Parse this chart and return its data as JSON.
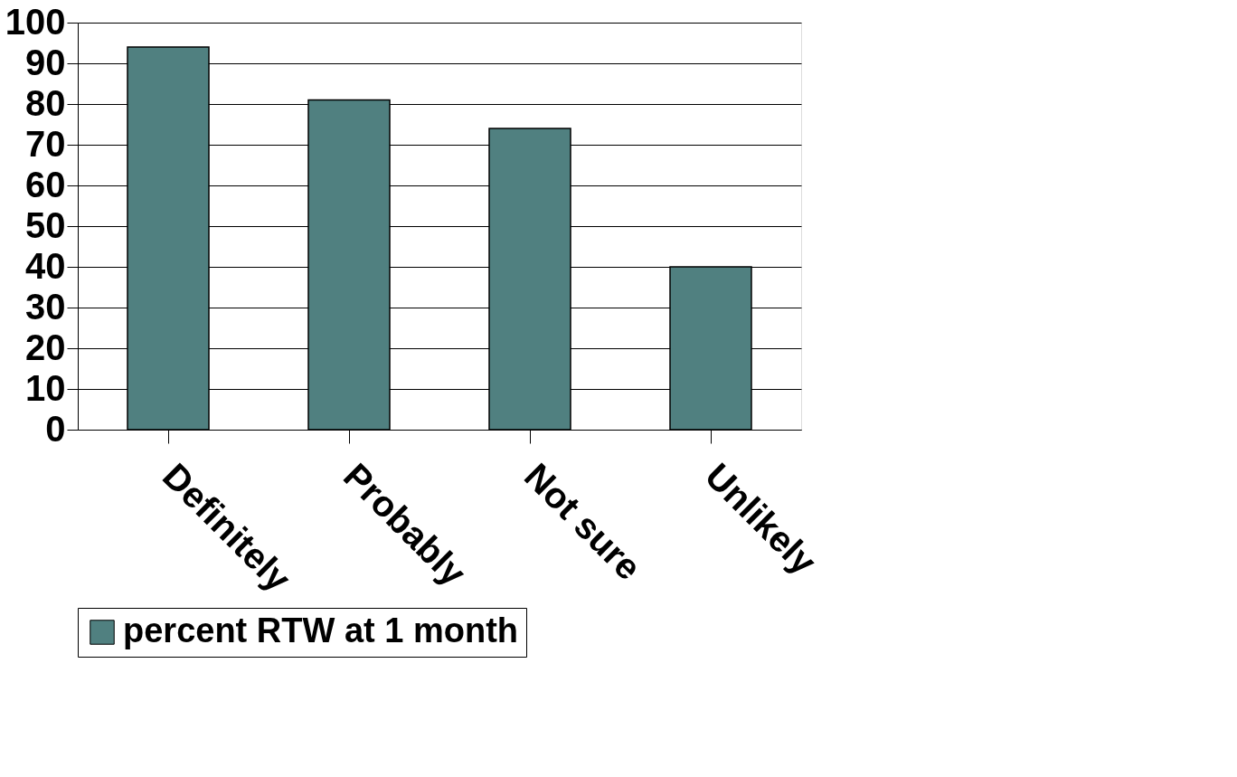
{
  "chart_data": {
    "type": "bar",
    "categories": [
      "Definitely",
      "Probably",
      "Not sure",
      "Unlikely"
    ],
    "series": [
      {
        "name": "percent RTW at 1 month",
        "color": "#508080",
        "values": [
          94,
          81,
          74,
          40
        ]
      }
    ],
    "ylim": [
      0,
      100
    ],
    "yticks": [
      0,
      10,
      20,
      30,
      40,
      50,
      60,
      70,
      80,
      90,
      100
    ],
    "grid": "y",
    "legend": "bottom"
  }
}
